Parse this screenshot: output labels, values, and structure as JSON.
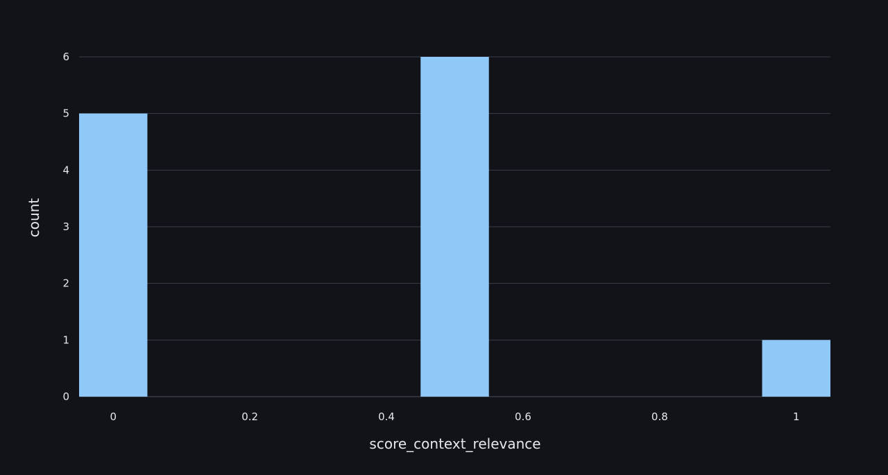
{
  "chart_data": {
    "type": "bar",
    "title": "",
    "xlabel": "score_context_relevance",
    "ylabel": "count",
    "bins": [
      {
        "x0": -0.05,
        "x1": 0.05,
        "count": 5
      },
      {
        "x0": 0.45,
        "x1": 0.55,
        "count": 6
      },
      {
        "x0": 0.95,
        "x1": 1.05,
        "count": 1
      }
    ],
    "x_ticks": [
      0,
      0.2,
      0.4,
      0.6,
      0.8,
      1
    ],
    "x_tick_labels": [
      "0",
      "0.2",
      "0.4",
      "0.6",
      "0.8",
      "1"
    ],
    "y_ticks": [
      0,
      1,
      2,
      3,
      4,
      5,
      6
    ],
    "y_tick_labels": [
      "0",
      "1",
      "2",
      "3",
      "4",
      "5",
      "6"
    ],
    "xlim": [
      -0.05,
      1.05
    ],
    "ylim": [
      0,
      6
    ],
    "grid": true,
    "bar_color": "#90c8f8",
    "background_color": "#111319"
  }
}
